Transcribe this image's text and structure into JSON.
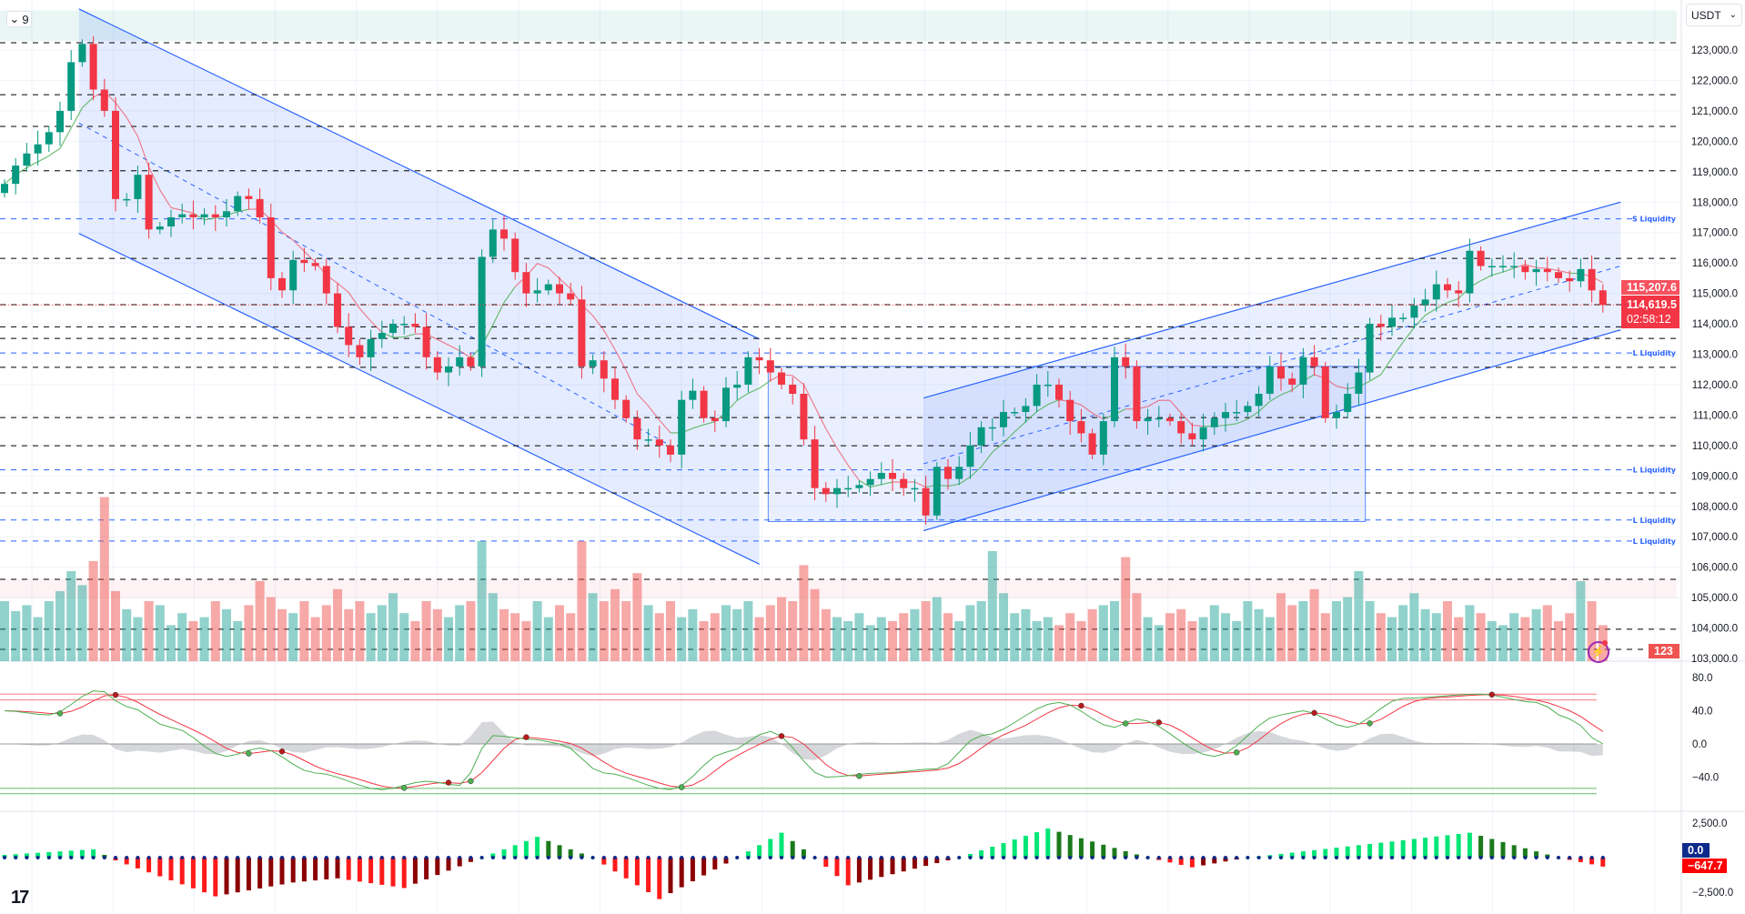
{
  "toolbar": {
    "interval_value": "9",
    "currency": "USDT"
  },
  "price_tags": {
    "prev_close": "115,207.6",
    "last_price": "114,619.5",
    "countdown": "02:58:12",
    "volume": "123",
    "macd_zero": "0.0",
    "macd_value": "−647.7"
  },
  "colors": {
    "up": "#089981",
    "down": "#f23645",
    "channel": "#2962ff",
    "liquidity": "#2962ff",
    "level": "#000000"
  },
  "chart_data": {
    "type": "candlestick",
    "symbol_quote": "USDT",
    "price_unit": "thousand",
    "first_open": 118.3,
    "closes": [
      118.6,
      119.2,
      119.6,
      119.9,
      120.3,
      121.0,
      122.6,
      123.2,
      121.7,
      121.0,
      118.1,
      118.1,
      118.9,
      117.1,
      117.2,
      117.5,
      117.6,
      117.5,
      117.6,
      117.5,
      117.7,
      118.2,
      118.1,
      117.5,
      115.5,
      115.1,
      116.1,
      116.0,
      115.9,
      115.0,
      113.9,
      113.3,
      112.9,
      113.5,
      113.7,
      114.0,
      114.0,
      113.9,
      112.9,
      112.4,
      112.6,
      112.9,
      112.6,
      116.2,
      117.1,
      116.8,
      115.7,
      115.0,
      115.1,
      115.3,
      115.0,
      114.8,
      112.6,
      112.8,
      112.2,
      111.5,
      110.9,
      110.2,
      110.2,
      110.0,
      109.7,
      111.5,
      111.8,
      110.9,
      110.8,
      111.9,
      112.0,
      112.9,
      112.8,
      112.4,
      112.0,
      111.7,
      110.2,
      108.6,
      108.4,
      108.6,
      108.6,
      108.7,
      108.9,
      109.1,
      108.9,
      108.6,
      108.6,
      107.7,
      109.3,
      108.9,
      109.3,
      110.0,
      110.6,
      110.6,
      111.1,
      111.1,
      111.3,
      112.0,
      112.0,
      111.5,
      110.8,
      110.4,
      109.7,
      110.8,
      112.9,
      112.6,
      110.8,
      110.9,
      110.9,
      110.8,
      110.4,
      110.2,
      110.6,
      110.9,
      111.1,
      111.1,
      111.3,
      111.7,
      112.6,
      112.2,
      112.0,
      112.9,
      112.6,
      110.9,
      111.1,
      111.7,
      112.4,
      114.0,
      113.9,
      114.2,
      114.2,
      114.6,
      114.8,
      115.3,
      115.1,
      115.0,
      116.4,
      115.9,
      115.9,
      115.9,
      115.9,
      115.7,
      115.8,
      115.7,
      115.5,
      115.4,
      115.8,
      115.1,
      114.62
    ],
    "volumes": [
      30,
      25,
      28,
      22,
      30,
      35,
      45,
      38,
      50,
      82,
      35,
      26,
      22,
      30,
      28,
      18,
      24,
      20,
      22,
      30,
      26,
      20,
      28,
      40,
      32,
      26,
      24,
      30,
      22,
      28,
      36,
      26,
      30,
      24,
      28,
      34,
      24,
      20,
      30,
      26,
      22,
      28,
      30,
      60,
      34,
      26,
      24,
      20,
      30,
      22,
      28,
      24,
      60,
      34,
      30,
      36,
      30,
      44,
      28,
      24,
      30,
      22,
      26,
      20,
      24,
      28,
      26,
      30,
      22,
      28,
      32,
      30,
      48,
      36,
      26,
      22,
      20,
      24,
      18,
      22,
      20,
      24,
      26,
      30,
      32,
      24,
      20,
      28,
      30,
      55,
      34,
      24,
      26,
      20,
      22,
      18,
      24,
      20,
      26,
      28,
      30,
      52,
      34,
      22,
      18,
      24,
      26,
      20,
      22,
      28,
      24,
      20,
      30,
      26,
      22,
      34,
      28,
      30,
      36,
      24,
      30,
      32,
      45,
      30,
      24,
      22,
      28,
      34,
      26,
      24,
      30,
      22,
      28,
      24,
      20,
      18,
      24,
      22,
      26,
      28,
      20,
      24,
      40,
      30,
      18
    ],
    "price_axis": {
      "min": 103,
      "max": 123,
      "ticks": [
        "123,000.0",
        "122,000.0",
        "121,000.0",
        "120,000.0",
        "119,000.0",
        "118,000.0",
        "117,000.0",
        "116,000.0",
        "115,000.0",
        "114,000.0",
        "113,000.0",
        "112,000.0",
        "111,000.0",
        "110,000.0",
        "109,000.0",
        "108,000.0",
        "107,000.0",
        "106,000.0",
        "105,000.0",
        "104,000.0",
        "103,000.0"
      ]
    },
    "levels": [
      123.24,
      121.53,
      120.49,
      119.03,
      116.15,
      114.63,
      113.9,
      113.52,
      112.57,
      110.92,
      109.99,
      108.44,
      105.6,
      103.96,
      103.3
    ],
    "liquidity": [
      {
        "price": 117.45,
        "label": "S Liquidity"
      },
      {
        "price": 113.04,
        "label": "L Liquidity"
      },
      {
        "price": 109.2,
        "label": "L Liquidity"
      },
      {
        "price": 107.55,
        "label": "L Liquidity"
      },
      {
        "price": 106.86,
        "label": "L Liquidity"
      }
    ],
    "zones": [
      {
        "from": 123.3,
        "to": 124.3,
        "kind": "supply"
      },
      {
        "from": 104.97,
        "to": 105.6,
        "kind": "demand"
      }
    ],
    "desc_channel": {
      "upper": [
        [
          6.7,
          124.35
        ],
        [
          68,
          113.5
        ]
      ],
      "lower": [
        [
          6.7,
          116.97
        ],
        [
          68,
          106.1
        ]
      ],
      "mid": [
        [
          6.7,
          120.6
        ],
        [
          60,
          110.0
        ]
      ]
    },
    "range_box": {
      "from_index": 68.8,
      "to_index": 122.6,
      "top": 112.6,
      "bottom": 107.5
    },
    "asc_channel": {
      "upper": [
        [
          82.8,
          111.56
        ],
        [
          145.6,
          118.0
        ]
      ],
      "lower": [
        [
          82.8,
          107.2
        ],
        [
          145.6,
          113.8
        ]
      ],
      "mid": [
        [
          82.8,
          109.4
        ],
        [
          145.6,
          115.9
        ]
      ]
    },
    "oscillator": {
      "ticks": [
        "80.0",
        "40.0",
        "0.0",
        "−40.0"
      ],
      "tick_values": [
        80,
        40,
        0,
        -40
      ],
      "overbought": [
        60,
        53
      ],
      "oversold": [
        -53.6,
        -60
      ],
      "wt1_anchors": [
        [
          0,
          40
        ],
        [
          4,
          35
        ],
        [
          8.5,
          65
        ],
        [
          11,
          45
        ],
        [
          15,
          20
        ],
        [
          20,
          -15
        ],
        [
          23,
          -5
        ],
        [
          28,
          -35
        ],
        [
          34,
          -55
        ],
        [
          38,
          -45
        ],
        [
          41,
          -50
        ],
        [
          44,
          10
        ],
        [
          48,
          5
        ],
        [
          50,
          0
        ],
        [
          54,
          -35
        ],
        [
          60,
          -55
        ],
        [
          65,
          -10
        ],
        [
          69,
          15
        ],
        [
          74,
          -40
        ],
        [
          79,
          -35
        ],
        [
          84,
          -30
        ],
        [
          88,
          10
        ],
        [
          95,
          50
        ],
        [
          100,
          20
        ],
        [
          102,
          30
        ],
        [
          109,
          -15
        ],
        [
          115,
          35
        ],
        [
          117,
          40
        ],
        [
          121,
          20
        ],
        [
          126,
          55
        ],
        [
          133,
          60
        ],
        [
          138,
          50
        ],
        [
          141,
          30
        ],
        [
          144,
          0
        ]
      ]
    },
    "macd": {
      "ticks": [
        "2,500.0",
        "−2,500.0"
      ],
      "tick_values": [
        2500,
        -2500
      ],
      "hist_anchors": [
        [
          0,
          200
        ],
        [
          8,
          600
        ],
        [
          10,
          -200
        ],
        [
          19,
          -2800
        ],
        [
          26,
          -1800
        ],
        [
          30,
          -1500
        ],
        [
          36,
          -2200
        ],
        [
          43,
          0
        ],
        [
          48,
          1500
        ],
        [
          53,
          0
        ],
        [
          59,
          -3000
        ],
        [
          66,
          0
        ],
        [
          70,
          1800
        ],
        [
          73,
          0
        ],
        [
          76,
          -2000
        ],
        [
          86,
          0
        ],
        [
          94,
          2100
        ],
        [
          103,
          0
        ],
        [
          107,
          -700
        ],
        [
          112,
          0
        ],
        [
          132,
          1800
        ],
        [
          140,
          0
        ],
        [
          144,
          -647.7
        ]
      ]
    }
  }
}
